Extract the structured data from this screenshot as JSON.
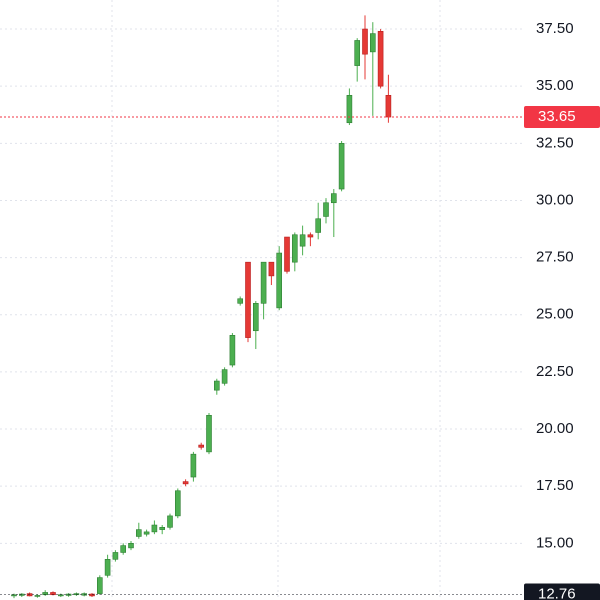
{
  "chart_data": {
    "type": "candlestick",
    "up_color": "#4caf50",
    "down_color": "#e53935",
    "open": [
      12.7,
      12.72,
      12.8,
      12.7,
      12.75,
      12.85,
      12.7,
      12.72,
      12.75,
      12.73,
      12.78,
      12.8,
      13.6,
      14.3,
      14.6,
      14.8,
      15.3,
      15.4,
      15.5,
      15.6,
      15.7,
      16.2,
      17.7,
      17.9,
      19.3,
      19.0,
      21.7,
      22.0,
      22.8,
      25.5,
      27.3,
      24.3,
      25.5,
      27.3,
      25.3,
      28.4,
      27.3,
      28.0,
      28.5,
      28.6,
      29.3,
      29.9,
      30.5,
      33.4,
      35.9,
      37.5,
      36.5,
      37.4,
      34.6
    ],
    "high": [
      12.8,
      12.82,
      12.85,
      12.76,
      12.95,
      12.9,
      12.8,
      12.82,
      12.85,
      12.85,
      12.82,
      13.6,
      14.5,
      14.7,
      15.0,
      15.1,
      15.9,
      15.6,
      16.0,
      15.8,
      16.3,
      17.4,
      17.8,
      19.0,
      19.4,
      20.7,
      22.2,
      22.7,
      24.2,
      25.8,
      27.3,
      25.6,
      27.3,
      27.3,
      28.0,
      28.4,
      28.6,
      28.9,
      28.6,
      29.9,
      30.1,
      30.5,
      32.6,
      34.9,
      37.1,
      38.1,
      37.8,
      37.5,
      35.5
    ],
    "low": [
      12.6,
      12.65,
      12.68,
      12.62,
      12.7,
      12.72,
      12.65,
      12.66,
      12.7,
      12.68,
      12.65,
      12.75,
      13.5,
      14.2,
      14.5,
      14.7,
      15.2,
      15.3,
      15.4,
      15.4,
      15.6,
      16.1,
      17.5,
      17.7,
      19.1,
      18.9,
      21.5,
      21.9,
      22.7,
      25.4,
      23.8,
      23.5,
      24.8,
      26.3,
      25.2,
      26.8,
      26.9,
      27.6,
      28.0,
      28.3,
      29.0,
      28.4,
      30.4,
      33.3,
      35.2,
      35.3,
      33.7,
      34.9,
      33.4
    ],
    "close": [
      12.75,
      12.78,
      12.7,
      12.72,
      12.85,
      12.75,
      12.75,
      12.78,
      12.8,
      12.8,
      12.7,
      13.5,
      14.3,
      14.6,
      14.9,
      15.0,
      15.6,
      15.5,
      15.8,
      15.7,
      16.2,
      17.3,
      17.6,
      18.9,
      19.2,
      20.6,
      22.1,
      22.6,
      24.1,
      25.7,
      24.0,
      25.5,
      27.3,
      26.7,
      27.7,
      26.9,
      28.5,
      28.5,
      28.4,
      29.2,
      29.9,
      30.3,
      32.5,
      34.6,
      37.0,
      36.4,
      37.3,
      35.0,
      33.65
    ],
    "ylim": [
      12.52,
      38.77
    ],
    "yticks": [
      {
        "value": 15,
        "label": "15.00"
      },
      {
        "value": 17.5,
        "label": "17.50"
      },
      {
        "value": 20,
        "label": "20.00"
      },
      {
        "value": 22.5,
        "label": "22.50"
      },
      {
        "value": 25,
        "label": "25.00"
      },
      {
        "value": 27.5,
        "label": "27.50"
      },
      {
        "value": 30,
        "label": "30.00"
      },
      {
        "value": 32.5,
        "label": "32.50"
      },
      {
        "value": 35,
        "label": "35.00"
      },
      {
        "value": 37.5,
        "label": "37.50"
      }
    ],
    "price_lines": [
      {
        "value": 33.65,
        "label": "33.65",
        "color": "#f23645"
      },
      {
        "value": 12.76,
        "label": "12.76",
        "color": "#131722"
      }
    ]
  }
}
